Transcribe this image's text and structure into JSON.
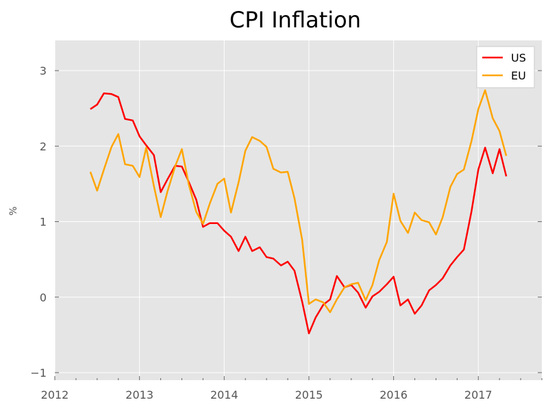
{
  "chart_data": {
    "type": "line",
    "title": "CPI Inflation",
    "xlabel": "",
    "ylabel": "%",
    "xlim": [
      2012.0,
      2017.75
    ],
    "ylim": [
      -1.1,
      3.4
    ],
    "x_ticks": [
      2012,
      2013,
      2014,
      2015,
      2016,
      2017
    ],
    "x_tick_labels": [
      "2012",
      "2013",
      "2014",
      "2015",
      "2016",
      "2017"
    ],
    "y_ticks": [
      -1,
      0,
      1,
      2,
      3
    ],
    "y_tick_labels": [
      "−1",
      "0",
      "1",
      "2",
      "3"
    ],
    "grid": true,
    "background": "#e5e5e5",
    "legend_position": "top-right",
    "x": [
      2012.42,
      2012.5,
      2012.58,
      2012.67,
      2012.75,
      2012.83,
      2012.92,
      2013.0,
      2013.08,
      2013.17,
      2013.25,
      2013.33,
      2013.42,
      2013.5,
      2013.58,
      2013.67,
      2013.75,
      2013.83,
      2013.92,
      2014.0,
      2014.08,
      2014.17,
      2014.25,
      2014.33,
      2014.42,
      2014.5,
      2014.58,
      2014.67,
      2014.75,
      2014.83,
      2014.92,
      2015.0,
      2015.08,
      2015.17,
      2015.25,
      2015.33,
      2015.42,
      2015.5,
      2015.58,
      2015.67,
      2015.75,
      2015.83,
      2015.92,
      2016.0,
      2016.08,
      2016.17,
      2016.25,
      2016.33,
      2016.42,
      2016.5,
      2016.58,
      2016.67,
      2016.75,
      2016.83,
      2016.92,
      2017.0,
      2017.08,
      2017.17,
      2017.25,
      2017.33
    ],
    "series": [
      {
        "name": "US",
        "color": "#ff0000",
        "values": [
          2.49,
          2.55,
          2.7,
          2.69,
          2.65,
          2.36,
          2.34,
          2.13,
          2.01,
          1.88,
          1.39,
          1.56,
          1.74,
          1.73,
          1.53,
          1.29,
          0.93,
          0.98,
          0.98,
          0.88,
          0.8,
          0.61,
          0.8,
          0.61,
          0.66,
          0.53,
          0.51,
          0.42,
          0.47,
          0.35,
          -0.06,
          -0.48,
          -0.27,
          -0.1,
          -0.03,
          0.28,
          0.13,
          0.16,
          0.06,
          -0.14,
          0.01,
          0.07,
          0.17,
          0.27,
          -0.11,
          -0.03,
          -0.22,
          -0.11,
          0.09,
          0.16,
          0.25,
          0.42,
          0.53,
          0.63,
          1.14,
          1.69,
          1.98,
          1.64,
          1.96,
          1.6
        ]
      },
      {
        "name": "EU",
        "color": "#ffa500",
        "values": [
          1.66,
          1.41,
          1.69,
          1.99,
          2.16,
          1.76,
          1.74,
          1.59,
          1.98,
          1.47,
          1.06,
          1.4,
          1.73,
          1.96,
          1.5,
          1.13,
          0.97,
          1.24,
          1.5,
          1.57,
          1.12,
          1.52,
          1.94,
          2.12,
          2.07,
          1.99,
          1.7,
          1.65,
          1.66,
          1.31,
          0.76,
          -0.09,
          -0.03,
          -0.07,
          -0.2,
          -0.03,
          0.13,
          0.17,
          0.19,
          -0.04,
          0.16,
          0.49,
          0.73,
          1.37,
          1.01,
          0.85,
          1.12,
          1.02,
          0.99,
          0.83,
          1.06,
          1.46,
          1.63,
          1.69,
          2.07,
          2.49,
          2.74,
          2.37,
          2.2,
          1.87
        ]
      }
    ]
  }
}
